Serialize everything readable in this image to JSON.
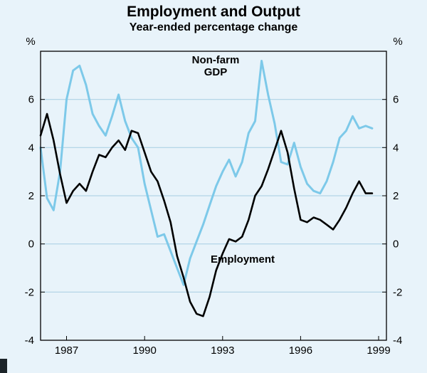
{
  "header": {
    "title": "Employment and Output",
    "subtitle": "Year-ended percentage change"
  },
  "colors": {
    "background": "#E8F3FA",
    "grid": "#A6CDE2",
    "frame": "#000000",
    "gdp_line": "#7DC9E9",
    "employment_line": "#000000"
  },
  "chart_data": {
    "type": "line",
    "title": "Employment and Output",
    "subtitle": "Year-ended percentage change",
    "unit_left": "%",
    "unit_right": "%",
    "x_start": 1986.0,
    "x_step": 0.25,
    "xlim": [
      1986.0,
      1999.3
    ],
    "ylim": [
      -4,
      8
    ],
    "y_ticks": [
      6,
      4,
      2,
      0,
      -2,
      -4
    ],
    "y_gridlines": [
      6,
      4,
      2,
      0,
      -2
    ],
    "x_ticks": [
      1987,
      1990,
      1993,
      1996,
      1999
    ],
    "grid": true,
    "legend_position": "inline-annotations",
    "series": [
      {
        "name": "Non-farm GDP",
        "color": "#7DC9E9",
        "values": [
          4.0,
          1.9,
          1.4,
          3.0,
          6.0,
          7.2,
          7.4,
          6.6,
          5.4,
          4.9,
          4.5,
          5.3,
          6.2,
          5.1,
          4.4,
          4.0,
          2.5,
          1.4,
          0.3,
          0.4,
          -0.3,
          -1.0,
          -1.7,
          -0.6,
          0.1,
          0.8,
          1.6,
          2.4,
          3.0,
          3.5,
          2.8,
          3.4,
          4.6,
          5.1,
          7.6,
          6.2,
          5.0,
          3.4,
          3.3,
          4.2,
          3.2,
          2.5,
          2.2,
          2.1,
          2.6,
          3.4,
          4.4,
          4.7,
          5.3,
          4.8,
          4.9,
          4.8
        ]
      },
      {
        "name": "Employment",
        "color": "#000000",
        "values": [
          4.5,
          5.4,
          4.3,
          2.9,
          1.7,
          2.2,
          2.5,
          2.2,
          3.0,
          3.7,
          3.6,
          4.0,
          4.3,
          3.9,
          4.7,
          4.6,
          3.8,
          3.0,
          2.6,
          1.8,
          0.9,
          -0.5,
          -1.4,
          -2.4,
          -2.9,
          -3.0,
          -2.2,
          -1.1,
          -0.4,
          0.2,
          0.1,
          0.3,
          1.0,
          2.0,
          2.4,
          3.1,
          3.9,
          4.7,
          3.8,
          2.3,
          1.0,
          0.9,
          1.1,
          1.0,
          0.8,
          0.6,
          1.0,
          1.5,
          2.1,
          2.6,
          2.1,
          2.1
        ]
      }
    ]
  }
}
